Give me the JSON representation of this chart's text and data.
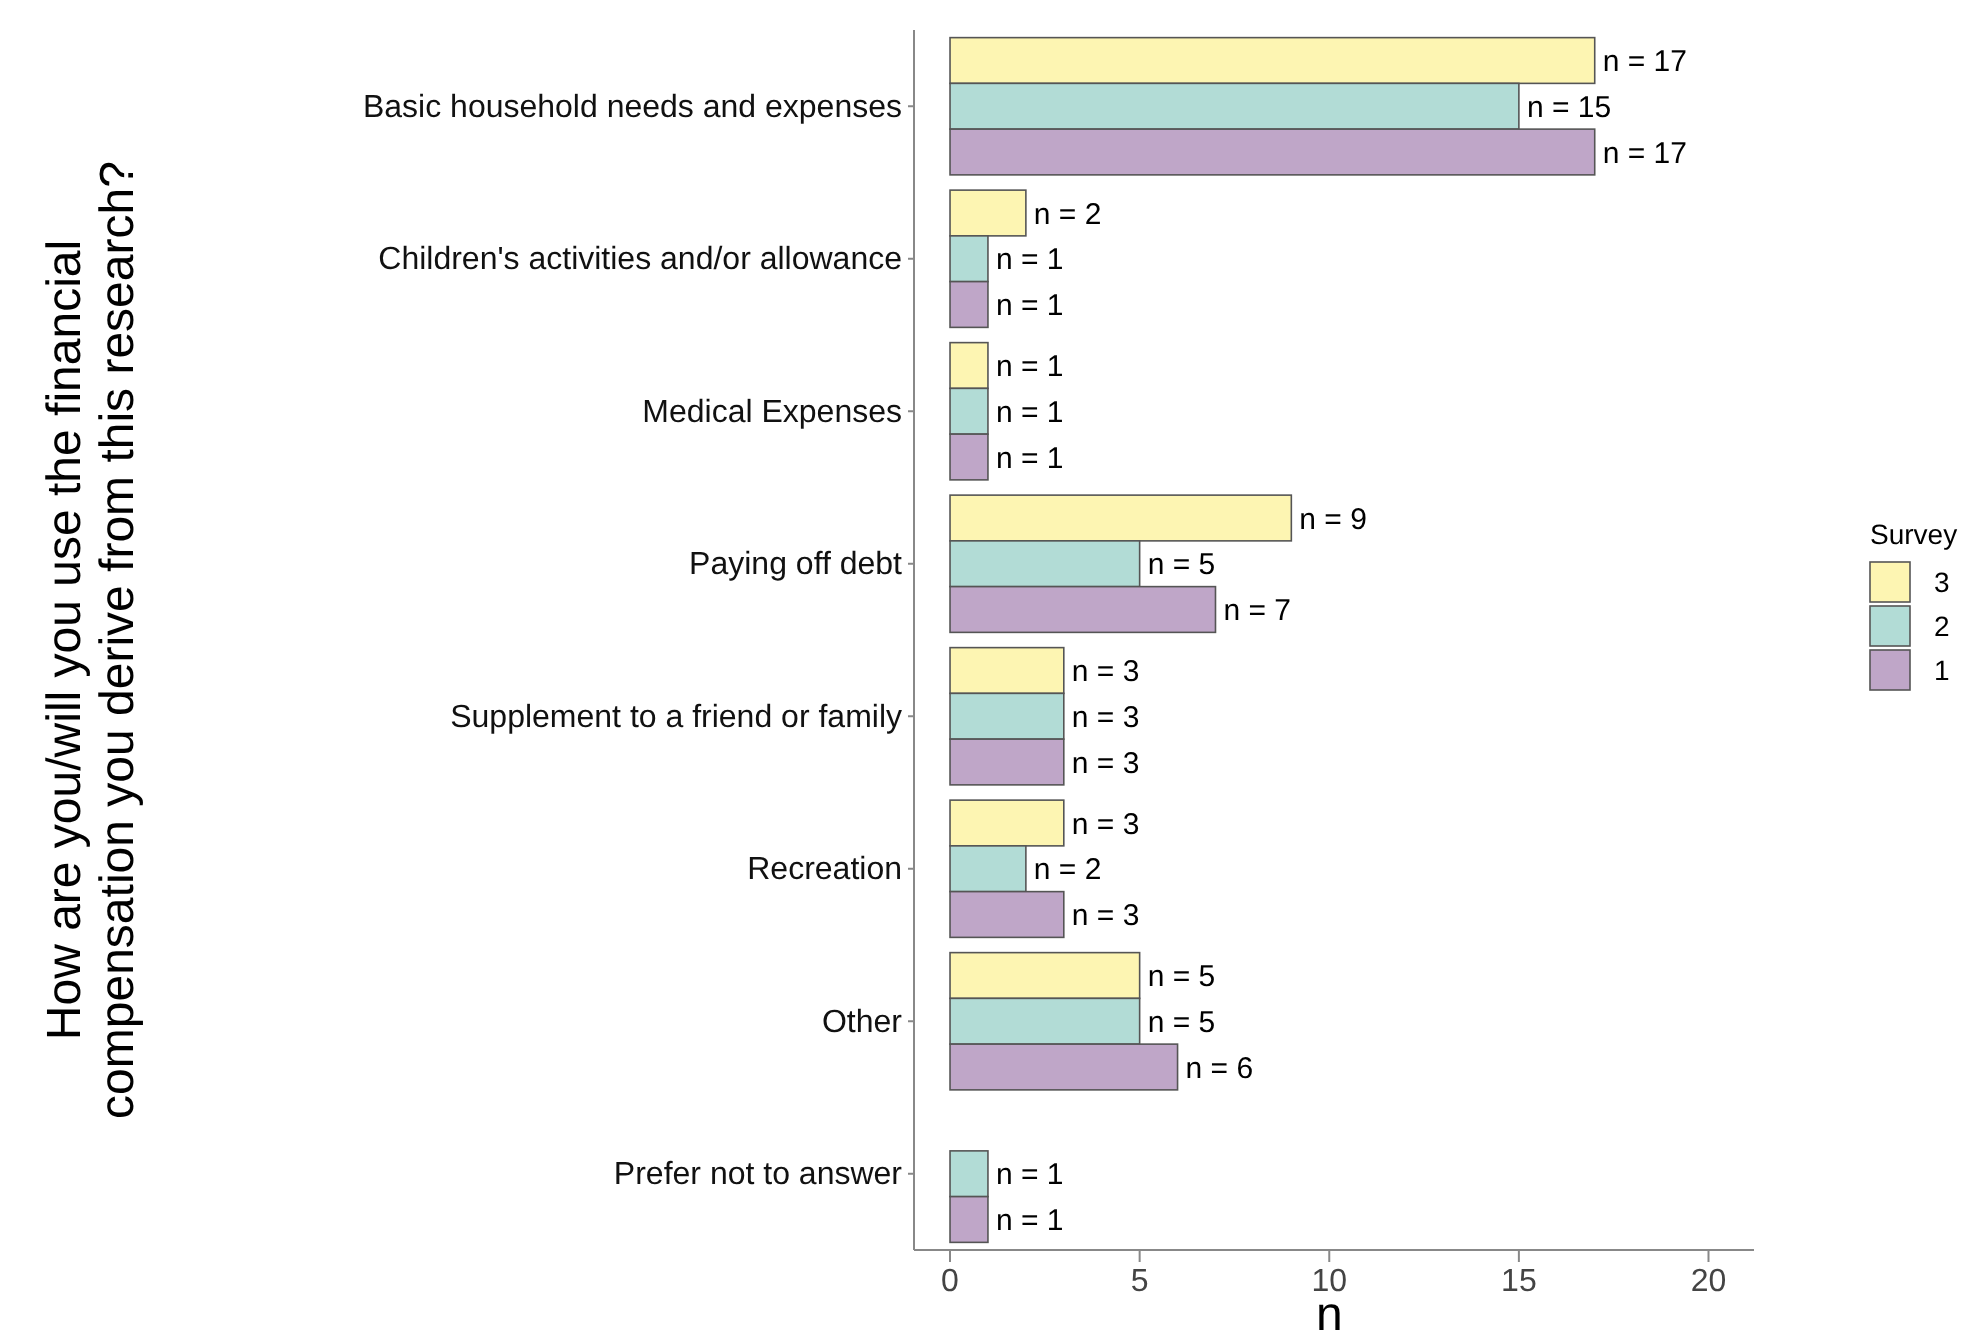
{
  "chart_data": {
    "type": "bar",
    "orientation": "horizontal",
    "xlabel": "n",
    "ylabel": "How are you/will you use the financial\ncompensation you derive from this research?",
    "legend_title": "Survey",
    "legend": "right",
    "grid": false,
    "categories": [
      "Basic household needs and expenses",
      "Children's activities and/or allowance",
      "Medical Expenses",
      "Paying off debt",
      "Supplement to a friend or family",
      "Recreation",
      "Other",
      "Prefer not to answer"
    ],
    "xlim": [
      -0.95,
      21.2
    ],
    "xticks": [
      0,
      5,
      10,
      15,
      20
    ],
    "series": [
      {
        "name": "3",
        "color": "#fdf5b2",
        "values": [
          17,
          2,
          1,
          9,
          3,
          3,
          5,
          null
        ],
        "value_labels": [
          "n = 17",
          "n = 2",
          "n = 1",
          "n = 9",
          "n = 3",
          "n = 3",
          "n = 5",
          null
        ]
      },
      {
        "name": "2",
        "color": "#b2dcd6",
        "values": [
          15,
          1,
          1,
          5,
          3,
          2,
          5,
          1
        ],
        "value_labels": [
          "n = 15",
          "n = 1",
          "n = 1",
          "n = 5",
          "n = 3",
          "n = 2",
          "n = 5",
          "n = 1"
        ]
      },
      {
        "name": "1",
        "color": "#bfa6c8",
        "values": [
          17,
          1,
          1,
          7,
          3,
          3,
          6,
          1
        ],
        "value_labels": [
          "n = 17",
          "n = 1",
          "n = 1",
          "n = 7",
          "n = 3",
          "n = 3",
          "n = 6",
          "n = 1"
        ]
      }
    ]
  }
}
